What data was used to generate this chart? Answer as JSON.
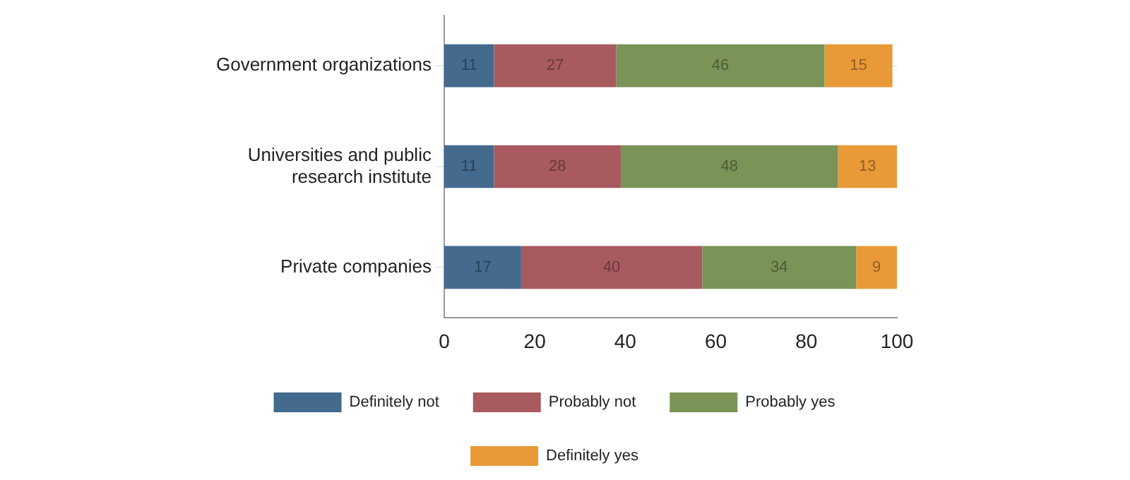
{
  "chart_data": {
    "type": "bar",
    "orientation": "horizontal",
    "stacked": true,
    "categories": [
      "Government organizations",
      "Universities and public research institute",
      "Private companies"
    ],
    "series": [
      {
        "name": "Definitely not",
        "color": "#446a8e",
        "values": [
          11,
          11,
          17
        ]
      },
      {
        "name": "Probably not",
        "color": "#a85a5f",
        "values": [
          27,
          28,
          40
        ]
      },
      {
        "name": "Probably yes",
        "color": "#7a9457",
        "values": [
          46,
          48,
          34
        ]
      },
      {
        "name": "Definitely yes",
        "color": "#e99a38",
        "values": [
          15,
          13,
          9
        ]
      }
    ],
    "xlim": [
      0,
      100
    ],
    "xticks": [
      0,
      20,
      40,
      60,
      80,
      100
    ],
    "grid": "y",
    "legend": "bottom",
    "data_labels": true
  }
}
